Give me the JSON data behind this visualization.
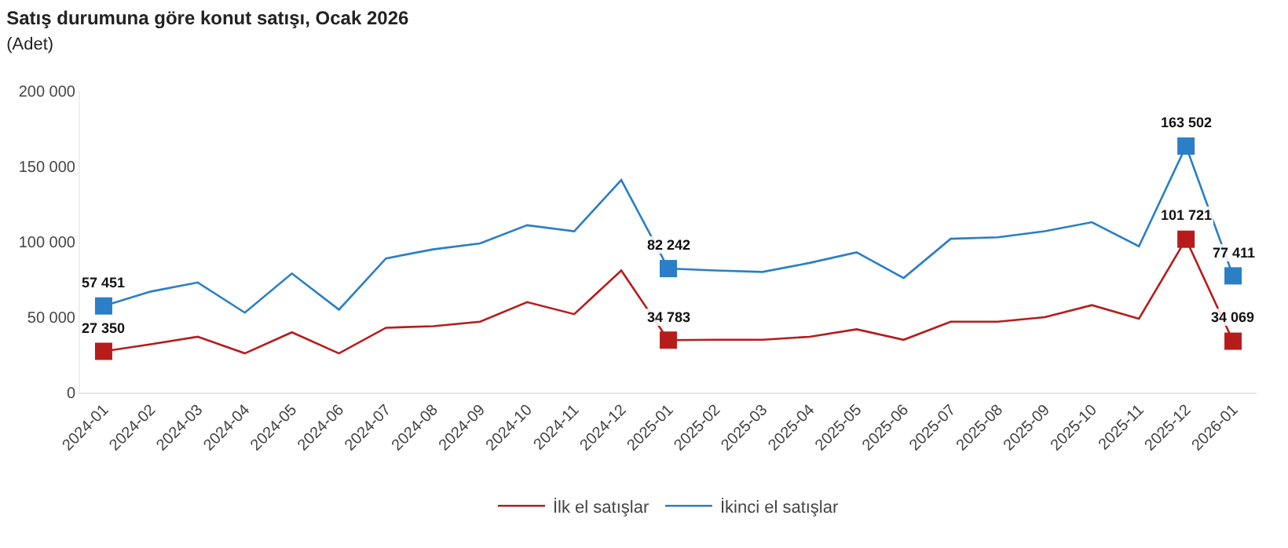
{
  "chart_data": {
    "type": "line",
    "title": "Satış durumuna göre konut satışı, Ocak 2026",
    "subtitle": "(Adet)",
    "categories": [
      "2024-01",
      "2024-02",
      "2024-03",
      "2024-04",
      "2024-05",
      "2024-06",
      "2024-07",
      "2024-08",
      "2024-09",
      "2024-10",
      "2024-11",
      "2024-12",
      "2025-01",
      "2025-02",
      "2025-03",
      "2025-04",
      "2025-05",
      "2025-06",
      "2025-07",
      "2025-08",
      "2025-09",
      "2025-10",
      "2025-11",
      "2025-12",
      "2026-01"
    ],
    "series": [
      {
        "name": "İlk el satışlar",
        "color": "#b71c1c",
        "values": [
          27350,
          32000,
          37000,
          26000,
          40000,
          26000,
          43000,
          44000,
          47000,
          60000,
          52000,
          81000,
          34783,
          35000,
          35000,
          37000,
          42000,
          35000,
          47000,
          47000,
          50000,
          58000,
          49000,
          101721,
          34069
        ],
        "value_labels": [
          "27 350",
          null,
          null,
          null,
          null,
          null,
          null,
          null,
          null,
          null,
          null,
          null,
          "34 783",
          null,
          null,
          null,
          null,
          null,
          null,
          null,
          null,
          null,
          null,
          "101 721",
          "34 069"
        ]
      },
      {
        "name": "İkinci el satışlar",
        "color": "#2a7fc6",
        "values": [
          57451,
          67000,
          73000,
          53000,
          79000,
          55000,
          89000,
          95000,
          99000,
          111000,
          107000,
          141000,
          82242,
          81000,
          80000,
          86000,
          93000,
          76000,
          102000,
          103000,
          107000,
          113000,
          97000,
          163502,
          77411
        ],
        "value_labels": [
          "57 451",
          null,
          null,
          null,
          null,
          null,
          null,
          null,
          null,
          null,
          null,
          null,
          "82 242",
          null,
          null,
          null,
          null,
          null,
          null,
          null,
          null,
          null,
          null,
          "163 502",
          "77 411"
        ]
      }
    ],
    "ylim": [
      0,
      200000
    ],
    "yticks": [
      {
        "value": 0,
        "label": "0"
      },
      {
        "value": 50000,
        "label": "50 000"
      },
      {
        "value": 100000,
        "label": "100 000"
      },
      {
        "value": 150000,
        "label": "150 000"
      },
      {
        "value": 200000,
        "label": "200 000"
      }
    ],
    "grid": false,
    "legend": "bottom",
    "line_style": "solid"
  }
}
